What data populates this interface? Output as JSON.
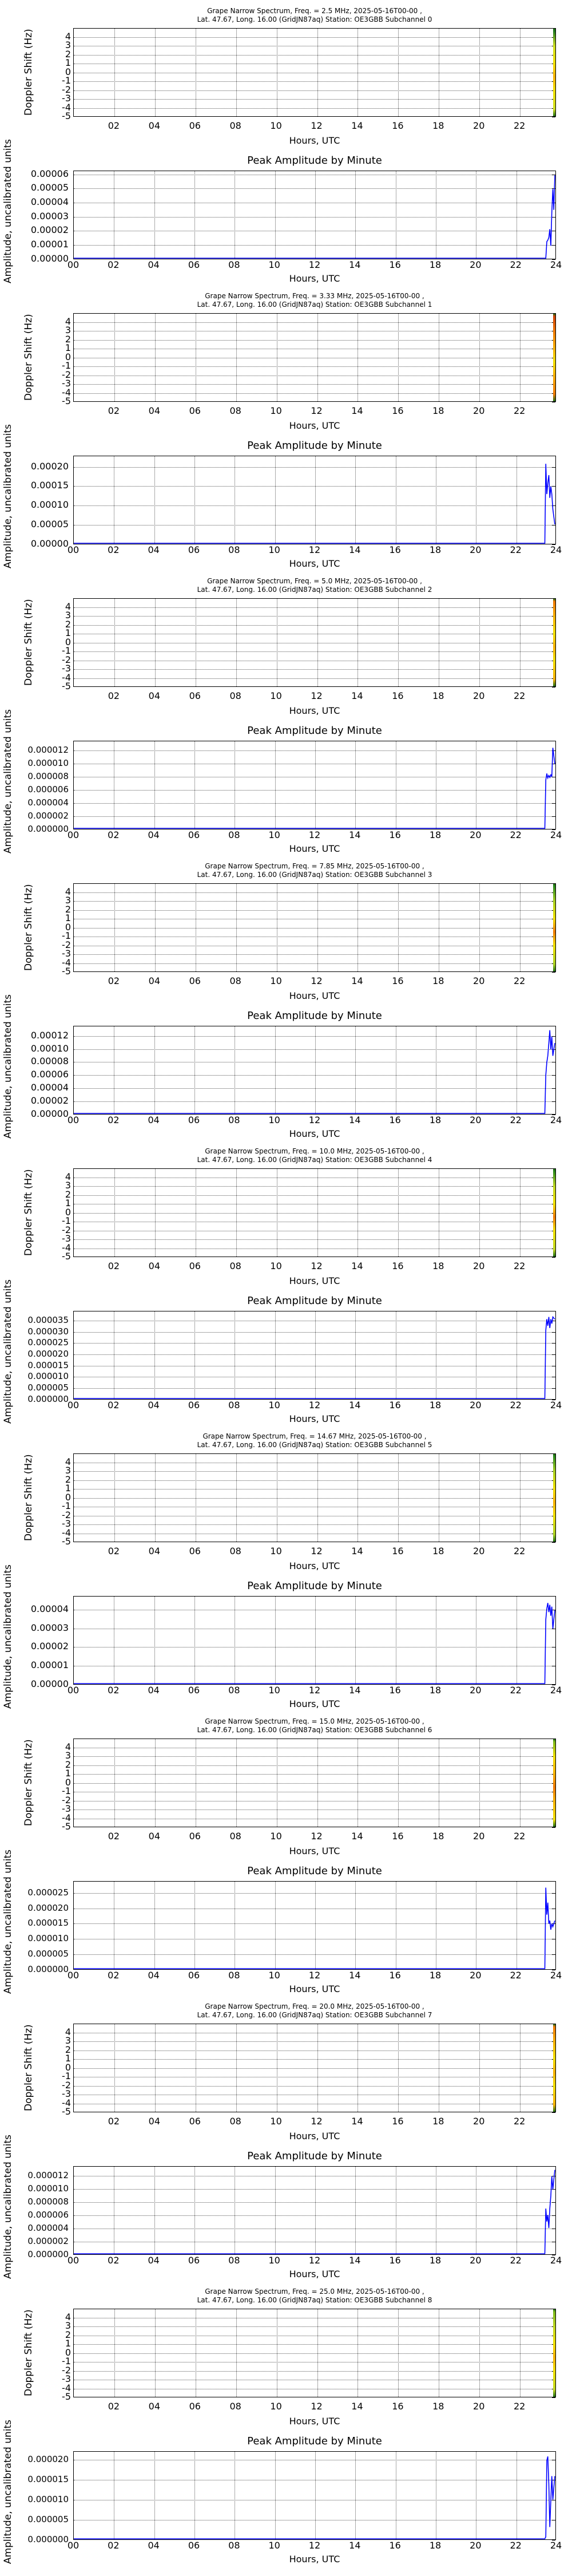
{
  "page": {
    "common": {
      "title_line2": "Lat.  47.67, Long.  16.00 (GridJN87aq) Station: OE3GBB Subchannel",
      "spectrum_ylabel": "Doppler Shift (Hz)",
      "amplitude_title": "Peak Amplitude by Minute",
      "amplitude_ylabel": "Amplitude, uncalibrated units",
      "xlabel": "Hours, UTC",
      "spectrum_xticks": [
        "02",
        "04",
        "06",
        "08",
        "10",
        "12",
        "14",
        "16",
        "18",
        "20",
        "22"
      ],
      "amplitude_xticks": [
        "00",
        "02",
        "04",
        "06",
        "08",
        "10",
        "12",
        "14",
        "16",
        "18",
        "20",
        "22",
        "24"
      ],
      "spectrum_yticks": [
        "4",
        "3",
        "2",
        "1",
        "0",
        "-1",
        "-2",
        "-3",
        "-4",
        "-5"
      ]
    }
  },
  "chart_data": [
    {
      "type": "heatmap",
      "title": "Grape Narrow Spectrum, Freq. = 2.5 MHz, 2025-05-16T00-00 ,",
      "subtitle": "Lat.  47.67, Long.  16.00 (GridJN87aq) Station: OE3GBB Subchannel 0",
      "xlabel": "Hours, UTC",
      "ylabel": "Doppler Shift (Hz)",
      "ylim": [
        -5,
        5
      ],
      "xlim": [
        0,
        23.8
      ],
      "data_region_hours": [
        23.5,
        23.8
      ],
      "colors": [
        "#1f7a1f",
        "#cfe020",
        "#f2e000",
        "#f7b000"
      ]
    },
    {
      "type": "line",
      "title": "Peak Amplitude by Minute",
      "xlabel": "Hours, UTC",
      "ylabel": "Amplitude, uncalibrated units",
      "ylim": [
        0,
        6.3e-05
      ],
      "yticks": [
        "0.00000",
        "0.00001",
        "0.00002",
        "0.00003",
        "0.00004",
        "0.00005",
        "0.00006"
      ],
      "x": [
        0,
        23.55,
        23.6,
        23.65,
        23.7,
        23.75,
        23.8,
        23.85,
        23.9,
        23.95,
        24
      ],
      "values": [
        0,
        0,
        1.2e-05,
        1.3e-05,
        1.5e-05,
        2.1e-05,
        9e-06,
        3.3e-05,
        5e-05,
        3.5e-05,
        6e-05
      ]
    },
    {
      "type": "heatmap",
      "title": "Grape Narrow Spectrum, Freq. = 3.33 MHz, 2025-05-16T00-00 ,",
      "subtitle": "Lat.  47.67, Long.  16.00 (GridJN87aq) Station: OE3GBB Subchannel 1",
      "xlabel": "Hours, UTC",
      "ylabel": "Doppler Shift (Hz)",
      "ylim": [
        -5,
        5
      ],
      "xlim": [
        0,
        23.8
      ],
      "data_region_hours": [
        23.5,
        23.8
      ],
      "colors": [
        "#d04000",
        "#f07800",
        "#f7b000",
        "#f2e000"
      ]
    },
    {
      "type": "line",
      "title": "Peak Amplitude by Minute",
      "xlabel": "Hours, UTC",
      "ylabel": "Amplitude, uncalibrated units",
      "ylim": [
        0,
        0.00023
      ],
      "yticks": [
        "0.00000",
        "0.00005",
        "0.00010",
        "0.00015",
        "0.00020"
      ],
      "x": [
        0,
        23.5,
        23.55,
        23.6,
        23.65,
        23.7,
        23.75,
        23.8,
        23.85,
        23.9,
        24
      ],
      "values": [
        0,
        0,
        0.00021,
        0.00013,
        0.00016,
        0.00018,
        0.00012,
        0.00015,
        0.00013,
        9e-05,
        5e-05
      ]
    },
    {
      "type": "heatmap",
      "title": "Grape Narrow Spectrum, Freq. = 5.0 MHz, 2025-05-16T00-00 ,",
      "subtitle": "Lat.  47.67, Long.  16.00 (GridJN87aq) Station: OE3GBB Subchannel 2",
      "xlabel": "Hours, UTC",
      "ylabel": "Doppler Shift (Hz)",
      "ylim": [
        -5,
        5
      ],
      "xlim": [
        0,
        23.8
      ],
      "data_region_hours": [
        23.5,
        23.8
      ],
      "colors": [
        "#f07800",
        "#f7b000",
        "#f2e000",
        "#f7b000"
      ]
    },
    {
      "type": "line",
      "title": "Peak Amplitude by Minute",
      "xlabel": "Hours, UTC",
      "ylabel": "Amplitude, uncalibrated units",
      "ylim": [
        0,
        1.35e-05
      ],
      "yticks": [
        "0.000000",
        "0.000002",
        "0.000004",
        "0.000006",
        "0.000008",
        "0.000010",
        "0.000012"
      ],
      "x": [
        0,
        23.5,
        23.55,
        23.6,
        23.65,
        23.7,
        23.75,
        23.8,
        23.85,
        23.9,
        24
      ],
      "values": [
        0,
        0,
        7.5e-06,
        8.5e-06,
        7.8e-06,
        8.2e-06,
        7.9e-06,
        8.3e-06,
        8e-06,
        1.25e-05,
        1e-05
      ]
    },
    {
      "type": "heatmap",
      "title": "Grape Narrow Spectrum, Freq. = 7.85 MHz, 2025-05-16T00-00 ,",
      "subtitle": "Lat.  47.67, Long.  16.00 (GridJN87aq) Station: OE3GBB Subchannel 3",
      "xlabel": "Hours, UTC",
      "ylabel": "Doppler Shift (Hz)",
      "ylim": [
        -5,
        5
      ],
      "xlim": [
        0,
        23.8
      ],
      "data_region_hours": [
        23.5,
        23.8
      ],
      "colors": [
        "#2a8a1a",
        "#a8d020",
        "#f2e000",
        "#f07800"
      ]
    },
    {
      "type": "line",
      "title": "Peak Amplitude by Minute",
      "xlabel": "Hours, UTC",
      "ylabel": "Amplitude, uncalibrated units",
      "ylim": [
        0,
        0.000136
      ],
      "yticks": [
        "0.00000",
        "0.00002",
        "0.00004",
        "0.00006",
        "0.00008",
        "0.00010",
        "0.00012"
      ],
      "x": [
        0,
        23.5,
        23.55,
        23.6,
        23.65,
        23.7,
        23.75,
        23.8,
        23.85,
        23.9,
        24
      ],
      "values": [
        0,
        0,
        6e-05,
        8e-05,
        9e-05,
        0.00011,
        0.00013,
        0.0001,
        0.00012,
        9e-05,
        0.00011
      ]
    },
    {
      "type": "heatmap",
      "title": "Grape Narrow Spectrum, Freq. = 10.0 MHz, 2025-05-16T00-00 ,",
      "subtitle": "Lat.  47.67, Long.  16.00 (GridJN87aq) Station: OE3GBB Subchannel 4",
      "xlabel": "Hours, UTC",
      "ylabel": "Doppler Shift (Hz)",
      "ylim": [
        -5,
        5
      ],
      "xlim": [
        0,
        23.8
      ],
      "data_region_hours": [
        23.5,
        23.8
      ],
      "colors": [
        "#2a8a1a",
        "#c0d820",
        "#f2e000",
        "#f07800"
      ]
    },
    {
      "type": "line",
      "title": "Peak Amplitude by Minute",
      "xlabel": "Hours, UTC",
      "ylabel": "Amplitude, uncalibrated units",
      "ylim": [
        0,
        3.95e-05
      ],
      "yticks": [
        "0.000000",
        "0.000005",
        "0.000010",
        "0.000015",
        "0.000020",
        "0.000025",
        "0.000030",
        "0.000035"
      ],
      "x": [
        0,
        23.5,
        23.55,
        23.6,
        23.65,
        23.7,
        23.75,
        23.8,
        23.85,
        23.9,
        24
      ],
      "values": [
        0,
        0,
        3.1e-05,
        3.6e-05,
        3.3e-05,
        3.7e-05,
        3.2e-05,
        3.6e-05,
        3.4e-05,
        3.7e-05,
        3.6e-05
      ]
    },
    {
      "type": "heatmap",
      "title": "Grape Narrow Spectrum, Freq. = 14.67 MHz, 2025-05-16T00-00 ,",
      "subtitle": "Lat.  47.67, Long.  16.00 (GridJN87aq) Station: OE3GBB Subchannel 5",
      "xlabel": "Hours, UTC",
      "ylabel": "Doppler Shift (Hz)",
      "ylim": [
        -5,
        5
      ],
      "xlim": [
        0,
        23.8
      ],
      "data_region_hours": [
        23.5,
        23.8
      ],
      "colors": [
        "#2a8a1a",
        "#a8d020",
        "#f2e000",
        "#f7b000"
      ]
    },
    {
      "type": "line",
      "title": "Peak Amplitude by Minute",
      "xlabel": "Hours, UTC",
      "ylabel": "Amplitude, uncalibrated units",
      "ylim": [
        0,
        4.75e-05
      ],
      "yticks": [
        "0.00000",
        "0.00001",
        "0.00002",
        "0.00003",
        "0.00004"
      ],
      "x": [
        0,
        23.5,
        23.55,
        23.6,
        23.65,
        23.7,
        23.75,
        23.8,
        23.85,
        23.9,
        24
      ],
      "values": [
        0,
        0,
        3.5e-05,
        4.1e-05,
        4.4e-05,
        3.9e-05,
        4.3e-05,
        3.7e-05,
        4.2e-05,
        3e-05,
        4e-05
      ]
    },
    {
      "type": "heatmap",
      "title": "Grape Narrow Spectrum, Freq. = 15.0 MHz, 2025-05-16T00-00 ,",
      "subtitle": "Lat.  47.67, Long.  16.00 (GridJN87aq) Station: OE3GBB Subchannel 6",
      "xlabel": "Hours, UTC",
      "ylabel": "Doppler Shift (Hz)",
      "ylim": [
        -5,
        5
      ],
      "xlim": [
        0,
        23.8
      ],
      "data_region_hours": [
        23.5,
        23.8
      ],
      "colors": [
        "#7ab81a",
        "#f2e000",
        "#f7b000",
        "#f07800"
      ]
    },
    {
      "type": "line",
      "title": "Peak Amplitude by Minute",
      "xlabel": "Hours, UTC",
      "ylabel": "Amplitude, uncalibrated units",
      "ylim": [
        0,
        2.9e-05
      ],
      "yticks": [
        "0.000000",
        "0.000005",
        "0.000010",
        "0.000015",
        "0.000020",
        "0.000025"
      ],
      "x": [
        0,
        23.5,
        23.55,
        23.6,
        23.65,
        23.7,
        23.75,
        23.8,
        23.85,
        23.9,
        24
      ],
      "values": [
        0,
        0,
        2.7e-05,
        1.8e-05,
        2.2e-05,
        1.5e-05,
        1.6e-05,
        1.3e-05,
        1.5e-05,
        1.4e-05,
        1.6e-05
      ]
    },
    {
      "type": "heatmap",
      "title": "Grape Narrow Spectrum, Freq. = 20.0 MHz, 2025-05-16T00-00 ,",
      "subtitle": "Lat.  47.67, Long.  16.00 (GridJN87aq) Station: OE3GBB Subchannel 7",
      "xlabel": "Hours, UTC",
      "ylabel": "Doppler Shift (Hz)",
      "ylim": [
        -5,
        5
      ],
      "xlim": [
        0,
        23.8
      ],
      "data_region_hours": [
        23.5,
        23.8
      ],
      "colors": [
        "#f07800",
        "#f7b000",
        "#f2e000",
        "#f7b000"
      ]
    },
    {
      "type": "line",
      "title": "Peak Amplitude by Minute",
      "xlabel": "Hours, UTC",
      "ylabel": "Amplitude, uncalibrated units",
      "ylim": [
        0,
        1.35e-05
      ],
      "yticks": [
        "0.000000",
        "0.000002",
        "0.000004",
        "0.000006",
        "0.000008",
        "0.000010",
        "0.000012"
      ],
      "x": [
        0,
        23.5,
        23.55,
        23.6,
        23.65,
        23.7,
        23.75,
        23.8,
        23.85,
        23.9,
        24
      ],
      "values": [
        0,
        0,
        7e-06,
        5e-06,
        6e-06,
        4e-06,
        7e-06,
        9e-06,
        1.2e-05,
        1e-05,
        1.3e-05
      ]
    },
    {
      "type": "heatmap",
      "title": "Grape Narrow Spectrum, Freq. = 25.0 MHz, 2025-05-16T00-00 ,",
      "subtitle": "Lat.  47.67, Long.  16.00 (GridJN87aq) Station: OE3GBB Subchannel 8",
      "xlabel": "Hours, UTC",
      "ylabel": "Doppler Shift (Hz)",
      "ylim": [
        -5,
        5
      ],
      "xlim": [
        0,
        23.8
      ],
      "data_region_hours": [
        23.5,
        23.8
      ],
      "colors": [
        "#7ab81a",
        "#c0d820",
        "#f2e000",
        "#f7b000"
      ]
    },
    {
      "type": "line",
      "title": "Peak Amplitude by Minute",
      "xlabel": "Hours, UTC",
      "ylabel": "Amplitude, uncalibrated units",
      "ylim": [
        0,
        2.22e-05
      ],
      "yticks": [
        "0.000000",
        "0.000005",
        "0.000010",
        "0.000015",
        "0.000020"
      ],
      "x": [
        0,
        23.5,
        23.55,
        23.6,
        23.65,
        23.7,
        23.75,
        23.8,
        23.85,
        23.9,
        24
      ],
      "values": [
        0,
        0,
        5e-07,
        2e-05,
        2.1e-05,
        1.4e-05,
        3e-06,
        1e-05,
        1.6e-05,
        1e-05,
        1.6e-05
      ]
    }
  ]
}
